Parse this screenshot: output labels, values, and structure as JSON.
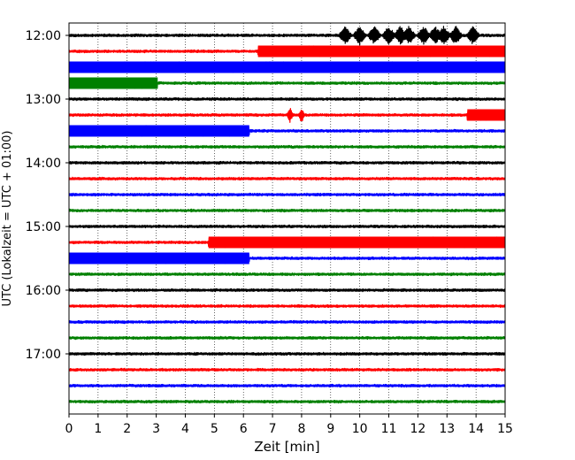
{
  "chart_data": {
    "type": "line",
    "title": "",
    "xlabel": "Zeit  [min]",
    "ylabel": "UTC (Lokalzeit = UTC + 01:00)",
    "xlim": [
      0,
      15
    ],
    "x_ticks": [
      "0",
      "1",
      "2",
      "3",
      "4",
      "5",
      "6",
      "7",
      "8",
      "9",
      "10",
      "11",
      "12",
      "13",
      "14",
      "15"
    ],
    "y_tick_labels": [
      "12:00",
      "13:00",
      "14:00",
      "15:00",
      "16:00",
      "17:00"
    ],
    "grid": "vertical dotted lines at each minute",
    "colors": [
      "#000000",
      "#ff0000",
      "#0000ff",
      "#008000"
    ],
    "line_interval_minutes": 15,
    "traces": [
      {
        "start": "12:00",
        "color": "#000000",
        "quake_bursts_min": [
          9.5,
          10.0,
          10.5,
          11.0,
          11.4,
          11.7,
          12.2,
          12.6,
          12.9,
          13.3,
          13.9
        ]
      },
      {
        "start": "12:15",
        "color": "#ff0000",
        "band_from_min": 6.5,
        "band_to_min": 15
      },
      {
        "start": "12:30",
        "color": "#0000ff",
        "band_from_min": 0,
        "band_to_min": 15
      },
      {
        "start": "12:45",
        "color": "#008000",
        "band_from_min": 0,
        "band_to_min": 3.05
      },
      {
        "start": "13:00",
        "color": "#000000"
      },
      {
        "start": "13:15",
        "color": "#ff0000",
        "spikes_min": [
          7.6,
          8.0
        ],
        "band_from_min": 13.7,
        "band_to_min": 15
      },
      {
        "start": "13:30",
        "color": "#0000ff",
        "band_from_min": 0,
        "band_to_min": 6.2
      },
      {
        "start": "13:45",
        "color": "#008000"
      },
      {
        "start": "14:00",
        "color": "#000000"
      },
      {
        "start": "14:15",
        "color": "#ff0000"
      },
      {
        "start": "14:30",
        "color": "#0000ff"
      },
      {
        "start": "14:45",
        "color": "#008000"
      },
      {
        "start": "15:00",
        "color": "#000000"
      },
      {
        "start": "15:15",
        "color": "#ff0000",
        "band_from_min": 4.8,
        "band_to_min": 15
      },
      {
        "start": "15:30",
        "color": "#0000ff",
        "band_from_min": 0,
        "band_to_min": 6.2
      },
      {
        "start": "15:45",
        "color": "#008000"
      },
      {
        "start": "16:00",
        "color": "#000000"
      },
      {
        "start": "16:15",
        "color": "#ff0000"
      },
      {
        "start": "16:30",
        "color": "#0000ff"
      },
      {
        "start": "16:45",
        "color": "#008000"
      },
      {
        "start": "17:00",
        "color": "#000000"
      },
      {
        "start": "17:15",
        "color": "#ff0000"
      },
      {
        "start": "17:30",
        "color": "#0000ff"
      },
      {
        "start": "17:45",
        "color": "#008000"
      }
    ]
  }
}
